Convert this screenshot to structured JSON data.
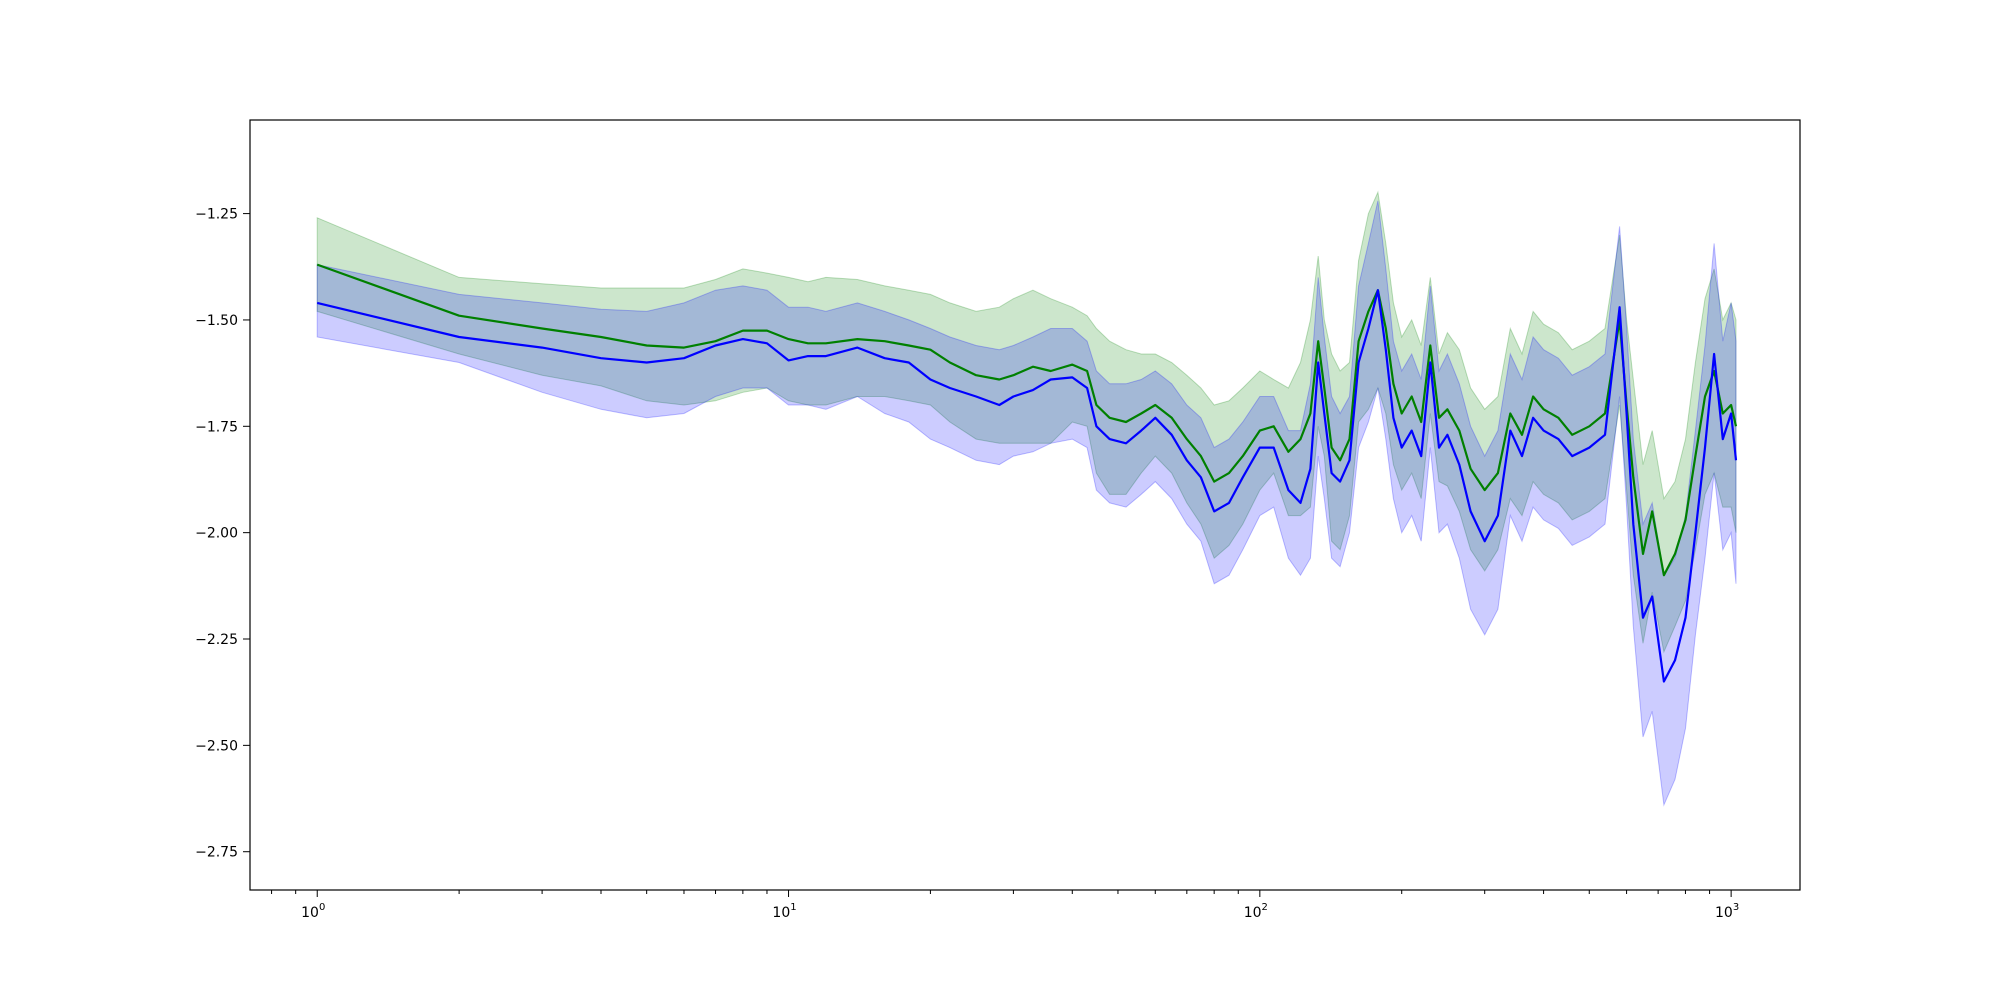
{
  "chart_data": {
    "type": "line",
    "title": "",
    "xlabel": "",
    "ylabel": "",
    "xscale": "log",
    "xlim": [
      0.72,
      1400
    ],
    "ylim": [
      -2.84,
      -1.03
    ],
    "grid": false,
    "x_ticks": [
      {
        "value": 1,
        "mantissa": "10",
        "exp": "0"
      },
      {
        "value": 10,
        "mantissa": "10",
        "exp": "1"
      },
      {
        "value": 100,
        "mantissa": "10",
        "exp": "2"
      },
      {
        "value": 1000,
        "mantissa": "10",
        "exp": "3"
      }
    ],
    "y_ticks": [
      {
        "value": -1.25,
        "label": "−1.25"
      },
      {
        "value": -1.5,
        "label": "−1.50"
      },
      {
        "value": -1.75,
        "label": "−1.75"
      },
      {
        "value": -2.0,
        "label": "−2.00"
      },
      {
        "value": -2.25,
        "label": "−2.25"
      },
      {
        "value": -2.5,
        "label": "−2.50"
      },
      {
        "value": -2.75,
        "label": "−2.75"
      }
    ],
    "series": [
      {
        "color": "#008000",
        "band_color": "#008000",
        "band_opacity": 0.2,
        "x": [
          1,
          2,
          3,
          4,
          5,
          6,
          7,
          8,
          9,
          10,
          11,
          12,
          14,
          16,
          18,
          20,
          22,
          25,
          28,
          30,
          33,
          36,
          40,
          43,
          45,
          48,
          52,
          56,
          60,
          65,
          70,
          75,
          80,
          86,
          92,
          100,
          107,
          115,
          122,
          128,
          133,
          137,
          142,
          148,
          155,
          162,
          170,
          178,
          185,
          192,
          200,
          210,
          220,
          230,
          240,
          250,
          265,
          280,
          300,
          320,
          340,
          360,
          380,
          400,
          430,
          460,
          500,
          540,
          580,
          600,
          620,
          650,
          680,
          720,
          760,
          800,
          840,
          880,
          920,
          960,
          1000,
          1024
        ],
        "y": [
          -1.37,
          -1.49,
          -1.52,
          -1.54,
          -1.56,
          -1.565,
          -1.55,
          -1.525,
          -1.525,
          -1.545,
          -1.555,
          -1.555,
          -1.545,
          -1.55,
          -1.56,
          -1.57,
          -1.6,
          -1.63,
          -1.64,
          -1.63,
          -1.61,
          -1.62,
          -1.605,
          -1.62,
          -1.7,
          -1.73,
          -1.74,
          -1.72,
          -1.7,
          -1.73,
          -1.78,
          -1.82,
          -1.88,
          -1.86,
          -1.82,
          -1.76,
          -1.75,
          -1.81,
          -1.78,
          -1.72,
          -1.55,
          -1.66,
          -1.8,
          -1.83,
          -1.78,
          -1.55,
          -1.48,
          -1.43,
          -1.52,
          -1.65,
          -1.72,
          -1.68,
          -1.74,
          -1.56,
          -1.73,
          -1.71,
          -1.76,
          -1.85,
          -1.9,
          -1.86,
          -1.72,
          -1.77,
          -1.68,
          -1.71,
          -1.73,
          -1.77,
          -1.75,
          -1.72,
          -1.5,
          -1.7,
          -1.87,
          -2.05,
          -1.95,
          -2.1,
          -2.05,
          -1.97,
          -1.82,
          -1.68,
          -1.62,
          -1.72,
          -1.7,
          -1.75
        ],
        "upper": [
          -1.26,
          -1.4,
          -1.415,
          -1.425,
          -1.425,
          -1.425,
          -1.405,
          -1.38,
          -1.39,
          -1.4,
          -1.41,
          -1.4,
          -1.405,
          -1.42,
          -1.43,
          -1.44,
          -1.46,
          -1.48,
          -1.47,
          -1.45,
          -1.43,
          -1.45,
          -1.47,
          -1.49,
          -1.52,
          -1.55,
          -1.57,
          -1.58,
          -1.58,
          -1.6,
          -1.63,
          -1.66,
          -1.7,
          -1.69,
          -1.66,
          -1.62,
          -1.64,
          -1.66,
          -1.6,
          -1.5,
          -1.35,
          -1.5,
          -1.58,
          -1.62,
          -1.6,
          -1.36,
          -1.25,
          -1.2,
          -1.32,
          -1.46,
          -1.54,
          -1.5,
          -1.56,
          -1.4,
          -1.58,
          -1.53,
          -1.57,
          -1.66,
          -1.71,
          -1.68,
          -1.52,
          -1.58,
          -1.48,
          -1.51,
          -1.53,
          -1.57,
          -1.55,
          -1.52,
          -1.3,
          -1.5,
          -1.64,
          -1.84,
          -1.76,
          -1.92,
          -1.88,
          -1.78,
          -1.6,
          -1.45,
          -1.38,
          -1.5,
          -1.46,
          -1.5
        ],
        "lower": [
          -1.48,
          -1.58,
          -1.63,
          -1.655,
          -1.69,
          -1.7,
          -1.69,
          -1.67,
          -1.66,
          -1.69,
          -1.7,
          -1.7,
          -1.68,
          -1.68,
          -1.69,
          -1.7,
          -1.74,
          -1.78,
          -1.79,
          -1.79,
          -1.79,
          -1.79,
          -1.74,
          -1.75,
          -1.86,
          -1.91,
          -1.91,
          -1.86,
          -1.82,
          -1.86,
          -1.93,
          -1.98,
          -2.06,
          -2.03,
          -1.98,
          -1.9,
          -1.86,
          -1.96,
          -1.96,
          -1.94,
          -1.75,
          -1.82,
          -2.02,
          -2.04,
          -1.96,
          -1.74,
          -1.71,
          -1.66,
          -1.72,
          -1.84,
          -1.9,
          -1.86,
          -1.92,
          -1.72,
          -1.88,
          -1.89,
          -1.95,
          -2.04,
          -2.09,
          -2.04,
          -1.92,
          -1.96,
          -1.88,
          -1.91,
          -1.93,
          -1.97,
          -1.95,
          -1.92,
          -1.7,
          -1.9,
          -2.1,
          -2.26,
          -2.14,
          -2.28,
          -2.22,
          -2.16,
          -2.04,
          -1.91,
          -1.86,
          -1.94,
          -1.94,
          -2.0
        ]
      },
      {
        "color": "#0000ff",
        "band_color": "#0000ff",
        "band_opacity": 0.2,
        "x": [
          1,
          2,
          3,
          4,
          5,
          6,
          7,
          8,
          9,
          10,
          11,
          12,
          14,
          16,
          18,
          20,
          22,
          25,
          28,
          30,
          33,
          36,
          40,
          43,
          45,
          48,
          52,
          56,
          60,
          65,
          70,
          75,
          80,
          86,
          92,
          100,
          107,
          115,
          122,
          128,
          133,
          137,
          142,
          148,
          155,
          162,
          170,
          178,
          185,
          192,
          200,
          210,
          220,
          230,
          240,
          250,
          265,
          280,
          300,
          320,
          340,
          360,
          380,
          400,
          430,
          460,
          500,
          540,
          580,
          600,
          620,
          650,
          680,
          720,
          760,
          800,
          840,
          880,
          920,
          960,
          1000,
          1024
        ],
        "y": [
          -1.46,
          -1.54,
          -1.565,
          -1.59,
          -1.6,
          -1.59,
          -1.56,
          -1.545,
          -1.555,
          -1.595,
          -1.585,
          -1.585,
          -1.565,
          -1.59,
          -1.6,
          -1.64,
          -1.66,
          -1.68,
          -1.7,
          -1.68,
          -1.665,
          -1.64,
          -1.635,
          -1.66,
          -1.75,
          -1.78,
          -1.79,
          -1.76,
          -1.73,
          -1.77,
          -1.83,
          -1.87,
          -1.95,
          -1.93,
          -1.87,
          -1.8,
          -1.8,
          -1.9,
          -1.93,
          -1.85,
          -1.6,
          -1.72,
          -1.86,
          -1.88,
          -1.83,
          -1.6,
          -1.52,
          -1.43,
          -1.57,
          -1.73,
          -1.8,
          -1.76,
          -1.82,
          -1.6,
          -1.8,
          -1.77,
          -1.84,
          -1.95,
          -2.02,
          -1.96,
          -1.76,
          -1.82,
          -1.73,
          -1.76,
          -1.78,
          -1.82,
          -1.8,
          -1.77,
          -1.47,
          -1.72,
          -1.98,
          -2.2,
          -2.15,
          -2.35,
          -2.3,
          -2.2,
          -2.0,
          -1.8,
          -1.58,
          -1.78,
          -1.72,
          -1.83
        ],
        "upper": [
          -1.37,
          -1.44,
          -1.46,
          -1.475,
          -1.48,
          -1.46,
          -1.43,
          -1.42,
          -1.43,
          -1.47,
          -1.47,
          -1.48,
          -1.46,
          -1.48,
          -1.5,
          -1.52,
          -1.54,
          -1.56,
          -1.57,
          -1.56,
          -1.54,
          -1.52,
          -1.52,
          -1.55,
          -1.62,
          -1.65,
          -1.65,
          -1.64,
          -1.62,
          -1.65,
          -1.7,
          -1.73,
          -1.8,
          -1.78,
          -1.74,
          -1.68,
          -1.68,
          -1.76,
          -1.76,
          -1.65,
          -1.4,
          -1.54,
          -1.68,
          -1.72,
          -1.68,
          -1.42,
          -1.32,
          -1.22,
          -1.38,
          -1.55,
          -1.62,
          -1.58,
          -1.64,
          -1.42,
          -1.62,
          -1.58,
          -1.65,
          -1.75,
          -1.82,
          -1.76,
          -1.58,
          -1.64,
          -1.54,
          -1.57,
          -1.59,
          -1.63,
          -1.61,
          -1.58,
          -1.28,
          -1.52,
          -1.78,
          -1.98,
          -1.93,
          -2.1,
          -2.06,
          -1.96,
          -1.76,
          -1.56,
          -1.32,
          -1.55,
          -1.46,
          -1.55
        ],
        "lower": [
          -1.54,
          -1.6,
          -1.67,
          -1.71,
          -1.73,
          -1.72,
          -1.68,
          -1.66,
          -1.66,
          -1.7,
          -1.7,
          -1.71,
          -1.68,
          -1.72,
          -1.74,
          -1.78,
          -1.8,
          -1.83,
          -1.84,
          -1.82,
          -1.81,
          -1.79,
          -1.78,
          -1.8,
          -1.9,
          -1.93,
          -1.94,
          -1.91,
          -1.88,
          -1.92,
          -1.98,
          -2.02,
          -2.12,
          -2.1,
          -2.04,
          -1.96,
          -1.94,
          -2.06,
          -2.1,
          -2.06,
          -1.82,
          -1.92,
          -2.06,
          -2.08,
          -2.0,
          -1.8,
          -1.74,
          -1.66,
          -1.78,
          -1.92,
          -2.0,
          -1.96,
          -2.02,
          -1.8,
          -2.0,
          -1.98,
          -2.06,
          -2.18,
          -2.24,
          -2.18,
          -1.96,
          -2.02,
          -1.94,
          -1.97,
          -1.99,
          -2.03,
          -2.01,
          -1.98,
          -1.68,
          -1.94,
          -2.22,
          -2.48,
          -2.42,
          -2.64,
          -2.58,
          -2.46,
          -2.24,
          -2.06,
          -1.86,
          -2.04,
          -2.0,
          -2.12
        ]
      }
    ]
  }
}
